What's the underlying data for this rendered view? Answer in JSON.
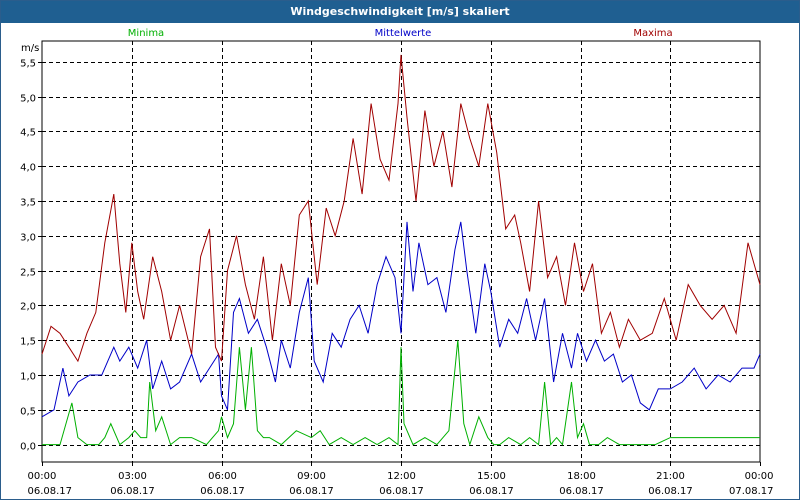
{
  "window": {
    "title": "Windgeschwindigkeit [m/s] skaliert"
  },
  "chart_data": {
    "type": "line",
    "title": "Windgeschwindigkeit [m/s] skaliert",
    "ylabel": "m/s",
    "xlabel": "",
    "ylim": [
      -0.25,
      5.8
    ],
    "xlim": [
      0,
      24
    ],
    "grid": true,
    "y_ticks": [
      {
        "value": 0.0,
        "label": "0,0"
      },
      {
        "value": 0.5,
        "label": "0,5"
      },
      {
        "value": 1.0,
        "label": "1,0"
      },
      {
        "value": 1.5,
        "label": "1,5"
      },
      {
        "value": 2.0,
        "label": "2,0"
      },
      {
        "value": 2.5,
        "label": "2,5"
      },
      {
        "value": 3.0,
        "label": "3,0"
      },
      {
        "value": 3.5,
        "label": "3,5"
      },
      {
        "value": 4.0,
        "label": "4,0"
      },
      {
        "value": 4.5,
        "label": "4,5"
      },
      {
        "value": 5.0,
        "label": "5,0"
      },
      {
        "value": 5.5,
        "label": "5,5"
      }
    ],
    "x_ticks": [
      {
        "value": 0,
        "time": "00:00",
        "date": "06.08.17"
      },
      {
        "value": 3,
        "time": "03:00",
        "date": "06.08.17"
      },
      {
        "value": 6,
        "time": "06:00",
        "date": "06.08.17"
      },
      {
        "value": 9,
        "time": "09:00",
        "date": "06.08.17"
      },
      {
        "value": 12,
        "time": "12:00",
        "date": "06.08.17"
      },
      {
        "value": 15,
        "time": "15:00",
        "date": "06.08.17"
      },
      {
        "value": 18,
        "time": "18:00",
        "date": "06.08.17"
      },
      {
        "value": 21,
        "time": "21:00",
        "date": "06.08.17"
      },
      {
        "value": 24,
        "time": "00:00",
        "date": "07.08.17"
      }
    ],
    "series": [
      {
        "name": "Minima",
        "color": "#00b000",
        "x": [
          0,
          0.6,
          1,
          1.2,
          1.5,
          1.9,
          2.1,
          2.3,
          2.6,
          2.9,
          3.1,
          3.3,
          3.5,
          3.6,
          3.8,
          4,
          4.3,
          4.6,
          5,
          5.5,
          5.9,
          6,
          6.2,
          6.4,
          6.6,
          6.8,
          7,
          7.2,
          7.4,
          7.6,
          8,
          8.5,
          9,
          9.3,
          9.6,
          10,
          10.4,
          10.8,
          11.2,
          11.6,
          11.9,
          12,
          12.1,
          12.4,
          12.8,
          13.2,
          13.6,
          13.9,
          14.1,
          14.3,
          14.6,
          14.9,
          15.1,
          15.3,
          15.6,
          16,
          16.3,
          16.6,
          16.8,
          17,
          17.2,
          17.4,
          17.7,
          17.9,
          18.1,
          18.3,
          18.6,
          18.9,
          19.3,
          20,
          20.5,
          21,
          21.5,
          22,
          22.5,
          23,
          23.5,
          24
        ],
        "values": [
          0,
          0,
          0.6,
          0.1,
          0,
          0,
          0.1,
          0.3,
          0,
          0.1,
          0.2,
          0.1,
          0.1,
          0.9,
          0.2,
          0.4,
          0,
          0.1,
          0.1,
          0,
          0.2,
          0.4,
          0.1,
          0.3,
          1.4,
          0.5,
          1.4,
          0.2,
          0.1,
          0.1,
          0,
          0.2,
          0.1,
          0.2,
          0,
          0.1,
          0,
          0.1,
          0,
          0.1,
          0,
          1.4,
          0.3,
          0,
          0.1,
          0,
          0.2,
          1.5,
          0.3,
          0,
          0.4,
          0.1,
          0,
          0,
          0.1,
          0,
          0.1,
          0,
          0.9,
          0,
          0.1,
          0,
          0.9,
          0.1,
          0.3,
          0,
          0,
          0.1,
          0,
          0,
          0,
          0.1,
          0.1,
          0.1,
          0.1,
          0.1,
          0.1,
          0.1
        ]
      },
      {
        "name": "Mittelwerte",
        "color": "#0000c8",
        "x": [
          0,
          0.4,
          0.7,
          0.9,
          1.2,
          1.6,
          2,
          2.4,
          2.6,
          2.9,
          3.2,
          3.5,
          3.7,
          4,
          4.3,
          4.6,
          5,
          5.3,
          5.6,
          5.9,
          6,
          6.2,
          6.4,
          6.6,
          6.9,
          7.2,
          7.5,
          7.8,
          8,
          8.3,
          8.6,
          8.9,
          9.1,
          9.4,
          9.7,
          10,
          10.3,
          10.6,
          10.9,
          11.2,
          11.5,
          11.8,
          12,
          12.2,
          12.4,
          12.6,
          12.9,
          13.2,
          13.5,
          13.8,
          14,
          14.2,
          14.5,
          14.8,
          15,
          15.3,
          15.6,
          15.9,
          16.2,
          16.5,
          16.8,
          17.1,
          17.4,
          17.7,
          17.9,
          18.2,
          18.5,
          18.8,
          19.1,
          19.4,
          19.7,
          20,
          20.3,
          20.6,
          21,
          21.4,
          21.8,
          22.2,
          22.6,
          23,
          23.4,
          23.8,
          24
        ],
        "values": [
          0.4,
          0.5,
          1.1,
          0.7,
          0.9,
          1,
          1,
          1.4,
          1.2,
          1.4,
          1.1,
          1.5,
          0.8,
          1.2,
          0.8,
          0.9,
          1.3,
          0.9,
          1.1,
          1.3,
          0.7,
          0.5,
          1.9,
          2.1,
          1.6,
          1.8,
          1.4,
          0.9,
          1.5,
          1.1,
          1.9,
          2.4,
          1.2,
          0.9,
          1.6,
          1.4,
          1.8,
          2,
          1.6,
          2.3,
          2.7,
          2.4,
          1.6,
          3.2,
          2.2,
          2.9,
          2.3,
          2.4,
          1.9,
          2.8,
          3.2,
          2.5,
          1.6,
          2.6,
          2.2,
          1.4,
          1.8,
          1.6,
          2.1,
          1.5,
          2.1,
          0.9,
          1.6,
          1.1,
          1.6,
          1.2,
          1.5,
          1.2,
          1.3,
          0.9,
          1,
          0.6,
          0.5,
          0.8,
          0.8,
          0.9,
          1.1,
          0.8,
          1,
          0.9,
          1.1,
          1.1,
          1.3
        ]
      },
      {
        "name": "Maxima",
        "color": "#a00000",
        "x": [
          0,
          0.3,
          0.6,
          0.9,
          1.2,
          1.5,
          1.8,
          2.1,
          2.4,
          2.6,
          2.8,
          3,
          3.2,
          3.4,
          3.7,
          4,
          4.3,
          4.6,
          5,
          5.3,
          5.6,
          5.8,
          6,
          6.2,
          6.5,
          6.8,
          7.1,
          7.4,
          7.7,
          8,
          8.3,
          8.6,
          8.9,
          9.2,
          9.5,
          9.8,
          10.1,
          10.4,
          10.7,
          11,
          11.3,
          11.6,
          11.9,
          12,
          12.2,
          12.5,
          12.8,
          13.1,
          13.4,
          13.7,
          14,
          14.3,
          14.6,
          14.9,
          15.2,
          15.5,
          15.8,
          16,
          16.3,
          16.6,
          16.9,
          17.2,
          17.5,
          17.8,
          18.1,
          18.4,
          18.7,
          19,
          19.3,
          19.6,
          20,
          20.4,
          20.8,
          21.2,
          21.6,
          22,
          22.4,
          22.8,
          23.2,
          23.6,
          24
        ],
        "values": [
          1.3,
          1.7,
          1.6,
          1.4,
          1.2,
          1.6,
          1.9,
          2.9,
          3.6,
          2.6,
          1.9,
          2.9,
          2.2,
          1.8,
          2.7,
          2.2,
          1.5,
          2,
          1.3,
          2.7,
          3.1,
          1.4,
          1.2,
          2.5,
          3,
          2.3,
          1.8,
          2.7,
          1.5,
          2.6,
          2,
          3.3,
          3.5,
          2.3,
          3.4,
          3,
          3.5,
          4.4,
          3.6,
          4.9,
          4.1,
          3.8,
          4.9,
          5.6,
          4.7,
          3.5,
          4.8,
          4,
          4.5,
          3.7,
          4.9,
          4.4,
          4,
          4.9,
          4.2,
          3.1,
          3.3,
          2.9,
          2.2,
          3.5,
          2.4,
          2.7,
          2,
          2.9,
          2.2,
          2.6,
          1.6,
          1.9,
          1.4,
          1.8,
          1.5,
          1.6,
          2.1,
          1.5,
          2.3,
          2,
          1.8,
          2,
          1.6,
          2.9,
          2.3
        ]
      }
    ]
  }
}
